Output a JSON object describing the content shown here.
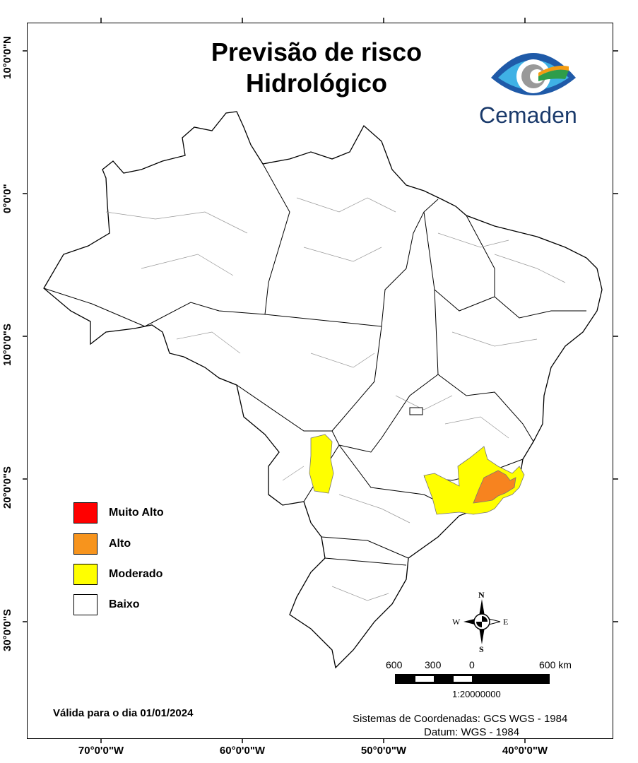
{
  "title": {
    "line1": "Previsão de risco",
    "line2": "Hidrológico"
  },
  "logo": {
    "text": "Cemaden",
    "color": "#1a3a6b"
  },
  "latitude_labels": [
    "10°0'0\"N",
    "0°0'0\"",
    "10°0'0\"S",
    "20°0'0\"S",
    "30°0'0\"S"
  ],
  "longitude_labels": [
    "70°0'0\"W",
    "60°0'0\"W",
    "50°0'0\"W",
    "40°0'0\"W"
  ],
  "legend": [
    {
      "label": "Muito Alto",
      "color": "#ff0000"
    },
    {
      "label": "Alto",
      "color": "#f7941d"
    },
    {
      "label": "Moderado",
      "color": "#ffff00"
    },
    {
      "label": "Baixo",
      "color": "#ffffff"
    }
  ],
  "compass": {
    "n": "N",
    "s": "S",
    "e": "E",
    "w": "W"
  },
  "scale": {
    "labels": [
      "600",
      "300",
      "0",
      "600 km"
    ],
    "ratio": "1:20000000"
  },
  "validity": "Válida para o dia 01/01/2024",
  "coordinate_system": "Sistemas de Coordenadas: GCS WGS - 1984",
  "datum": "Datum: WGS - 1984"
}
